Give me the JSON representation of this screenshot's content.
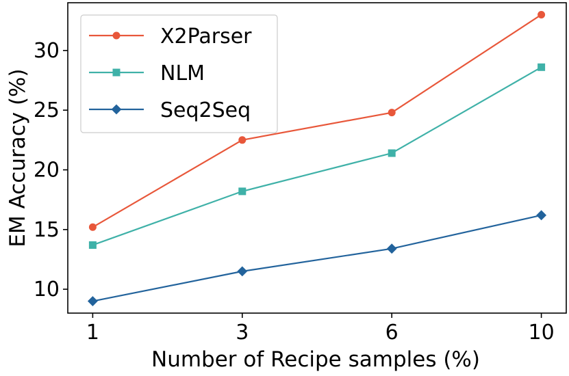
{
  "chart_data": {
    "type": "line",
    "xlabel": "Number of Recipe samples (%)",
    "ylabel": "EM Accuracy (%)",
    "categories": [
      "1",
      "3",
      "6",
      "10"
    ],
    "yticks": [
      10,
      15,
      20,
      25,
      30
    ],
    "ylim": [
      8.0,
      34.0
    ],
    "grid": false,
    "legend_position": "top-left",
    "series": [
      {
        "name": "X2Parser",
        "values": [
          15.2,
          22.5,
          24.8,
          33.0
        ],
        "color": "#e8573a",
        "marker": "circle"
      },
      {
        "name": "NLM",
        "values": [
          13.7,
          18.2,
          21.4,
          28.6
        ],
        "color": "#3fb1a8",
        "marker": "square"
      },
      {
        "name": "Seq2Seq",
        "values": [
          9.0,
          11.5,
          13.4,
          16.2
        ],
        "color": "#22639c",
        "marker": "diamond"
      }
    ]
  }
}
